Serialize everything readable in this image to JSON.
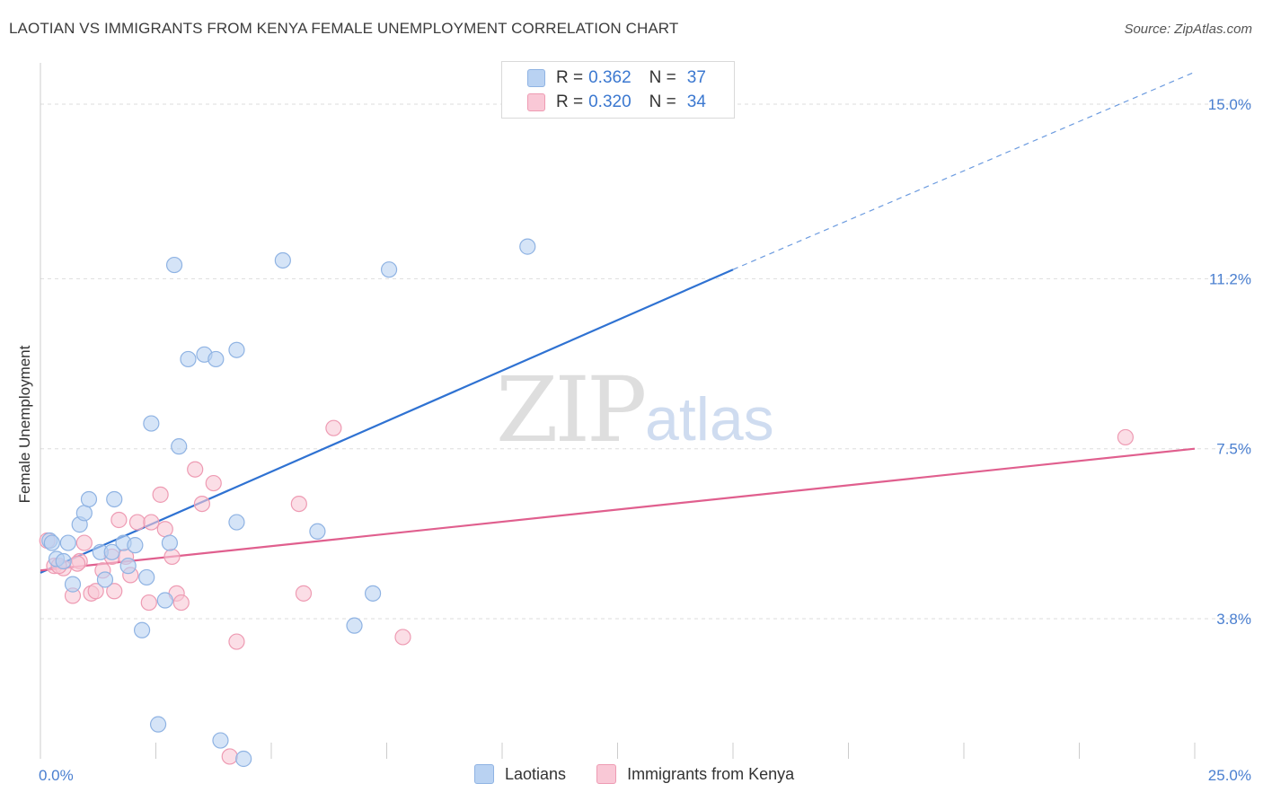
{
  "title": "LAOTIAN VS IMMIGRANTS FROM KENYA FEMALE UNEMPLOYMENT CORRELATION CHART",
  "source": "Source: ZipAtlas.com",
  "watermark": {
    "zip": "ZIP",
    "atlas": "atlas"
  },
  "colors": {
    "laotian_fill": "#b9d2f2",
    "laotian_stroke": "#8fb3e3",
    "laotian_line": "#2f72d2",
    "kenya_fill": "#f9c8d6",
    "kenya_stroke": "#ee9bb3",
    "kenya_line": "#e05f8e",
    "axis_text": "#4a7fd0",
    "grid": "#dddddd"
  },
  "legend": {
    "rows": [
      {
        "r_label": "R =",
        "r_value": "0.362",
        "n_label": "N =",
        "n_value": "37"
      },
      {
        "r_label": "R =",
        "r_value": "0.320",
        "n_label": "N =",
        "n_value": "34"
      }
    ]
  },
  "bottom_legend": [
    "Laotians",
    "Immigrants from Kenya"
  ],
  "chart_data": {
    "type": "scatter",
    "title": "LAOTIAN VS IMMIGRANTS FROM KENYA FEMALE UNEMPLOYMENT CORRELATION CHART",
    "xlabel": "",
    "ylabel": "Female Unemployment",
    "xlim": [
      0,
      25
    ],
    "ylim": [
      0.75,
      15.9
    ],
    "x_tick_labels": [
      "0.0%",
      "25.0%"
    ],
    "y_ticks": [
      3.8,
      7.5,
      11.2,
      15.0
    ],
    "y_tick_labels": [
      "3.8%",
      "7.5%",
      "11.2%",
      "15.0%"
    ],
    "grid": true,
    "series": [
      {
        "name": "Laotians",
        "points": [
          [
            0.2,
            5.5
          ],
          [
            0.35,
            5.1
          ],
          [
            0.5,
            5.05
          ],
          [
            0.6,
            5.45
          ],
          [
            0.7,
            4.55
          ],
          [
            0.85,
            5.85
          ],
          [
            0.95,
            6.1
          ],
          [
            1.05,
            6.4
          ],
          [
            1.3,
            5.25
          ],
          [
            1.4,
            4.65
          ],
          [
            1.55,
            5.25
          ],
          [
            1.6,
            6.4
          ],
          [
            1.8,
            5.45
          ],
          [
            1.9,
            4.95
          ],
          [
            2.05,
            5.4
          ],
          [
            2.2,
            3.55
          ],
          [
            2.3,
            4.7
          ],
          [
            2.4,
            8.05
          ],
          [
            2.55,
            1.5
          ],
          [
            2.7,
            4.2
          ],
          [
            2.8,
            5.45
          ],
          [
            2.9,
            11.5
          ],
          [
            3.0,
            7.55
          ],
          [
            3.2,
            9.45
          ],
          [
            3.55,
            9.55
          ],
          [
            3.8,
            9.45
          ],
          [
            3.9,
            1.15
          ],
          [
            4.25,
            9.65
          ],
          [
            4.4,
            0.75
          ],
          [
            4.25,
            5.9
          ],
          [
            5.25,
            11.6
          ],
          [
            6.0,
            5.7
          ],
          [
            6.8,
            3.65
          ],
          [
            7.2,
            4.35
          ],
          [
            7.55,
            11.4
          ],
          [
            10.55,
            11.9
          ],
          [
            0.25,
            5.45
          ]
        ],
        "trend": {
          "x_start": 0.0,
          "y_start": 4.8,
          "x_solid_end": 15.0,
          "y_solid_end": 11.4,
          "x_dash_end": 25.0,
          "y_dash_end": 15.7
        }
      },
      {
        "name": "Immigrants from Kenya",
        "points": [
          [
            0.15,
            5.5
          ],
          [
            0.3,
            4.95
          ],
          [
            0.5,
            4.9
          ],
          [
            0.7,
            4.3
          ],
          [
            0.85,
            5.05
          ],
          [
            0.95,
            5.45
          ],
          [
            1.1,
            4.35
          ],
          [
            1.2,
            4.4
          ],
          [
            1.35,
            4.85
          ],
          [
            1.55,
            5.15
          ],
          [
            1.6,
            4.4
          ],
          [
            1.7,
            5.95
          ],
          [
            1.85,
            5.15
          ],
          [
            1.95,
            4.75
          ],
          [
            2.1,
            5.9
          ],
          [
            2.35,
            4.15
          ],
          [
            2.4,
            5.9
          ],
          [
            2.6,
            6.5
          ],
          [
            2.7,
            5.75
          ],
          [
            2.85,
            5.15
          ],
          [
            2.95,
            4.35
          ],
          [
            3.05,
            4.15
          ],
          [
            3.35,
            7.05
          ],
          [
            3.5,
            6.3
          ],
          [
            3.75,
            6.75
          ],
          [
            4.1,
            0.8
          ],
          [
            4.25,
            3.3
          ],
          [
            5.6,
            6.3
          ],
          [
            5.7,
            4.35
          ],
          [
            6.35,
            7.95
          ],
          [
            7.85,
            3.4
          ],
          [
            23.5,
            7.75
          ],
          [
            0.4,
            4.95
          ],
          [
            0.8,
            5.0
          ]
        ],
        "trend": {
          "x_start": 0.0,
          "y_start": 4.85,
          "x_end": 25.0,
          "y_end": 7.5
        }
      }
    ]
  }
}
